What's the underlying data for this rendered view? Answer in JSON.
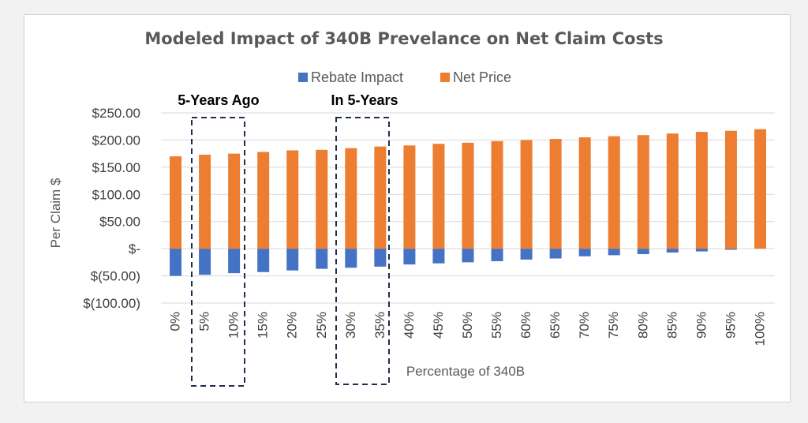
{
  "chart_data": {
    "type": "bar",
    "stacked": true,
    "title": "Modeled Impact of 340B Prevelance on Net Claim Costs",
    "xlabel": "Percentage of 340B",
    "ylabel": "Per Claim $",
    "ylim": [
      -100,
      250
    ],
    "y_ticks": [
      250,
      200,
      150,
      100,
      50,
      0,
      -50,
      -100
    ],
    "y_tick_labels": [
      "$250.00",
      "$200.00",
      "$150.00",
      "$100.00",
      "$50.00",
      "$-",
      "$(50.00)",
      "$(100.00)"
    ],
    "categories": [
      "0%",
      "5%",
      "10%",
      "15%",
      "20%",
      "25%",
      "30%",
      "35%",
      "40%",
      "45%",
      "50%",
      "55%",
      "60%",
      "65%",
      "70%",
      "75%",
      "80%",
      "85%",
      "90%",
      "95%",
      "100%"
    ],
    "series": [
      {
        "name": "Rebate Impact",
        "color": "#4472c4",
        "values": [
          -50,
          -48,
          -45,
          -43,
          -40,
          -37,
          -35,
          -33,
          -29,
          -27,
          -25,
          -23,
          -20,
          -18,
          -14,
          -12,
          -10,
          -7,
          -5,
          -2,
          0
        ]
      },
      {
        "name": "Net Price",
        "color": "#ed7d31",
        "values": [
          170,
          173,
          175,
          178,
          181,
          182,
          185,
          188,
          190,
          193,
          195,
          198,
          200,
          202,
          205,
          207,
          209,
          212,
          215,
          217,
          220
        ]
      }
    ],
    "legend": "top",
    "grid": true,
    "annotations": [
      {
        "label": "5-Years Ago",
        "categories": [
          "5%",
          "10%"
        ]
      },
      {
        "label": "In 5-Years",
        "categories": [
          "30%",
          "35%"
        ]
      }
    ]
  }
}
